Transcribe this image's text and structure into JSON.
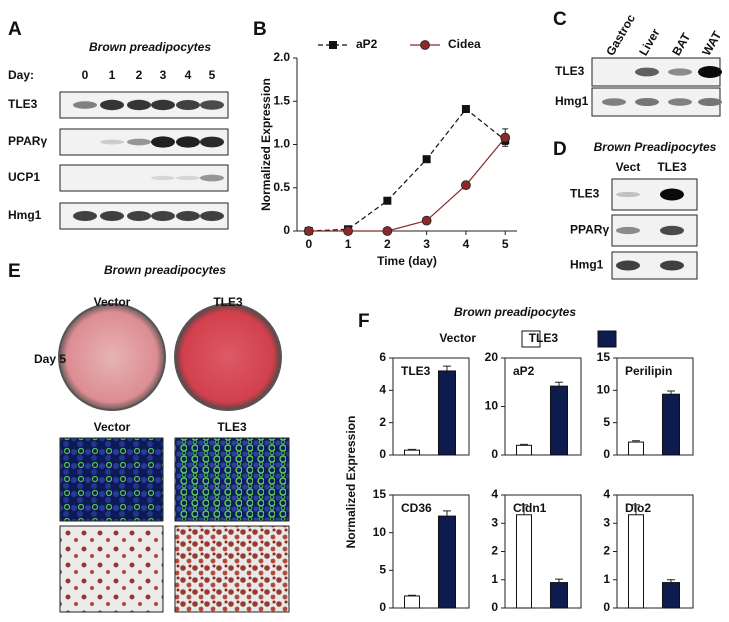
{
  "panel_labels": [
    "A",
    "B",
    "C",
    "D",
    "E",
    "F"
  ],
  "panel_a": {
    "title": "Brown preadipocytes",
    "day_label": "Day:",
    "days": [
      "0",
      "1",
      "2",
      "3",
      "4",
      "5"
    ],
    "rows": [
      "TLE3",
      "PPARγ",
      "UCP1",
      "Hmg1"
    ]
  },
  "panel_c": {
    "lanes": [
      "Gastroc",
      "Liver",
      "BAT",
      "WAT"
    ],
    "rows": [
      "TLE3",
      "Hmg1"
    ]
  },
  "panel_d": {
    "title": "Brown Preadipocytes",
    "lanes": [
      "Vect",
      "TLE3"
    ],
    "rows": [
      "TLE3",
      "PPARγ",
      "Hmg1"
    ]
  },
  "panel_e": {
    "title": "Brown preadipocytes",
    "day_label": "Day 5",
    "columns": [
      "Vector",
      "TLE3"
    ],
    "columns_lower": [
      "Vector",
      "TLE3"
    ]
  },
  "panel_f": {
    "title": "Brown preadipocytes",
    "y_label": "Normalized Expression",
    "legend": [
      {
        "label": "Vector",
        "color": "#ffffff"
      },
      {
        "label": "TLE3",
        "color": "#0d1b4f"
      }
    ]
  },
  "chart_data": [
    {
      "type": "line",
      "x_label": "Time (day)",
      "y_label": "Normalized Expression",
      "x": [
        0,
        1,
        2,
        3,
        4,
        5
      ],
      "xlim": [
        -0.3,
        5.3
      ],
      "xticks": [
        0,
        1,
        2,
        3,
        4,
        5
      ],
      "ylim": [
        0,
        2
      ],
      "yticks": [
        0,
        0.5,
        {
          "value": 1,
          "label": "1.0"
        },
        1.5,
        {
          "value": 2,
          "label": "2.0"
        }
      ],
      "series": [
        {
          "name": "aP2",
          "color": "#111111",
          "line_style": "dashed",
          "marker": "square",
          "values": [
            0,
            0.02,
            0.35,
            0.83,
            1.41,
            1.05
          ],
          "errors": [
            null,
            null,
            null,
            null,
            null,
            0.05
          ]
        },
        {
          "name": "Cidea",
          "color": "#8b2a2a",
          "line_style": "solid",
          "marker": "circle",
          "values": [
            0,
            0,
            0,
            0.12,
            0.53,
            1.08
          ],
          "errors": [
            null,
            null,
            null,
            null,
            0.04,
            0.1
          ]
        }
      ]
    },
    {
      "type": "bar",
      "title": "TLE3",
      "values": [
        0.3,
        5.2
      ],
      "errors": [
        0.05,
        0.3
      ],
      "colors": [
        "#ffffff",
        "#0d1b4f"
      ],
      "ylim": [
        0,
        6
      ],
      "yticks": [
        0,
        2,
        4,
        6
      ]
    },
    {
      "type": "bar",
      "title": "aP2",
      "values": [
        2.0,
        14.2
      ],
      "errors": [
        0.2,
        0.8
      ],
      "colors": [
        "#ffffff",
        "#0d1b4f"
      ],
      "ylim": [
        0,
        20
      ],
      "yticks": [
        0,
        10,
        20
      ]
    },
    {
      "type": "bar",
      "title": "Perilipin",
      "values": [
        2.0,
        9.4
      ],
      "errors": [
        0.2,
        0.5
      ],
      "colors": [
        "#ffffff",
        "#0d1b4f"
      ],
      "ylim": [
        0,
        15
      ],
      "yticks": [
        0,
        5,
        10,
        15
      ]
    },
    {
      "type": "bar",
      "title": "CD36",
      "values": [
        1.6,
        12.2
      ],
      "errors": [
        0.1,
        0.7
      ],
      "colors": [
        "#ffffff",
        "#0d1b4f"
      ],
      "ylim": [
        0,
        15
      ],
      "yticks": [
        0,
        5,
        10,
        15
      ]
    },
    {
      "type": "bar",
      "title": "Cldn1",
      "values": [
        3.3,
        0.9
      ],
      "errors": [
        0.35,
        0.12
      ],
      "colors": [
        "#ffffff",
        "#0d1b4f"
      ],
      "ylim": [
        0,
        4
      ],
      "yticks": [
        0,
        1,
        2,
        3,
        4
      ]
    },
    {
      "type": "bar",
      "title": "Dio2",
      "values": [
        3.3,
        0.9
      ],
      "errors": [
        0.35,
        0.1
      ],
      "colors": [
        "#ffffff",
        "#0d1b4f"
      ],
      "ylim": [
        0,
        4
      ],
      "yticks": [
        0,
        1,
        2,
        3,
        4
      ]
    }
  ]
}
